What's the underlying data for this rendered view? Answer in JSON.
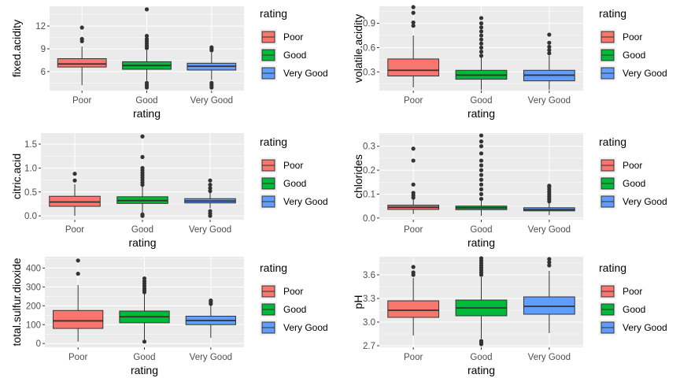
{
  "chart_data": [
    {
      "type": "box",
      "ylabel": "fixed.acidity",
      "xlabel": "rating",
      "categories": [
        "Poor",
        "Good",
        "Very Good"
      ],
      "ylim": [
        3.5,
        14.6
      ],
      "yticks": [
        6,
        9,
        12
      ],
      "legend": {
        "title": "rating",
        "entries": [
          "Poor",
          "Good",
          "Very Good"
        ],
        "position": "right"
      },
      "boxes": [
        {
          "category": "Poor",
          "q1": 6.6,
          "median": 7.0,
          "q3": 7.7,
          "whisker_low": 4.2,
          "whisker_high": 9.3,
          "outliers": [
            10.0,
            10.3,
            11.8
          ]
        },
        {
          "category": "Good",
          "q1": 6.3,
          "median": 6.8,
          "q3": 7.3,
          "whisker_low": 4.8,
          "whisker_high": 8.8,
          "outliers": [
            3.9,
            4.2,
            4.5,
            9.1,
            9.4,
            9.7,
            10.0,
            10.3,
            10.7,
            14.2
          ]
        },
        {
          "category": "Very Good",
          "q1": 6.2,
          "median": 6.7,
          "q3": 7.1,
          "whisker_low": 4.9,
          "whisker_high": 8.5,
          "outliers": [
            3.9,
            4.2,
            4.5,
            8.8,
            9.0,
            9.2
          ]
        }
      ]
    },
    {
      "type": "box",
      "ylabel": "volatile.acidity",
      "xlabel": "rating",
      "categories": [
        "Poor",
        "Good",
        "Very Good"
      ],
      "ylim": [
        0.07,
        1.11
      ],
      "yticks": [
        0.3,
        0.6,
        0.9
      ],
      "legend": {
        "title": "rating",
        "entries": [
          "Poor",
          "Good",
          "Very Good"
        ],
        "position": "right"
      },
      "boxes": [
        {
          "category": "Poor",
          "q1": 0.25,
          "median": 0.32,
          "q3": 0.46,
          "whisker_low": 0.11,
          "whisker_high": 0.75,
          "outliers": [
            0.87,
            0.91,
            1.03,
            1.1
          ]
        },
        {
          "category": "Good",
          "q1": 0.21,
          "median": 0.26,
          "q3": 0.32,
          "whisker_low": 0.08,
          "whisker_high": 0.48,
          "outliers": [
            0.5,
            0.55,
            0.6,
            0.65,
            0.7,
            0.75,
            0.8,
            0.85,
            0.9,
            0.965
          ]
        },
        {
          "category": "Very Good",
          "q1": 0.19,
          "median": 0.26,
          "q3": 0.32,
          "whisker_low": 0.08,
          "whisker_high": 0.5,
          "outliers": [
            0.53,
            0.57,
            0.61,
            0.66,
            0.76
          ]
        }
      ]
    },
    {
      "type": "box",
      "ylabel": "citric.acid",
      "xlabel": "rating",
      "categories": [
        "Poor",
        "Good",
        "Very Good"
      ],
      "ylim": [
        -0.08,
        1.73
      ],
      "yticks": [
        0.0,
        0.5,
        1.0,
        1.5
      ],
      "legend": {
        "title": "rating",
        "entries": [
          "Poor",
          "Good",
          "Very Good"
        ],
        "position": "right"
      },
      "boxes": [
        {
          "category": "Poor",
          "q1": 0.2,
          "median": 0.29,
          "q3": 0.41,
          "whisker_low": 0.0,
          "whisker_high": 0.66,
          "outliers": [
            0.74,
            0.88
          ]
        },
        {
          "category": "Good",
          "q1": 0.26,
          "median": 0.32,
          "q3": 0.4,
          "whisker_low": 0.06,
          "whisker_high": 0.62,
          "outliers": [
            0.0,
            0.03,
            0.65,
            0.7,
            0.75,
            0.8,
            0.85,
            0.9,
            0.95,
            1.0,
            1.23,
            1.66
          ]
        },
        {
          "category": "Very Good",
          "q1": 0.27,
          "median": 0.31,
          "q3": 0.36,
          "whisker_low": 0.16,
          "whisker_high": 0.48,
          "outliers": [
            0.0,
            0.05,
            0.1,
            0.52,
            0.58,
            0.65,
            0.74
          ]
        }
      ]
    },
    {
      "type": "box",
      "ylabel": "chlorides",
      "xlabel": "rating",
      "categories": [
        "Poor",
        "Good",
        "Very Good"
      ],
      "ylim": [
        -0.007,
        0.355
      ],
      "yticks": [
        0.0,
        0.1,
        0.2,
        0.3
      ],
      "legend": {
        "title": "rating",
        "entries": [
          "Poor",
          "Good",
          "Very Good"
        ],
        "position": "right"
      },
      "boxes": [
        {
          "category": "Poor",
          "q1": 0.036,
          "median": 0.045,
          "q3": 0.054,
          "whisker_low": 0.017,
          "whisker_high": 0.08,
          "outliers": [
            0.085,
            0.095,
            0.105,
            0.14,
            0.24,
            0.29
          ]
        },
        {
          "category": "Good",
          "q1": 0.035,
          "median": 0.043,
          "q3": 0.05,
          "whisker_low": 0.009,
          "whisker_high": 0.072,
          "outliers": [
            0.08,
            0.1,
            0.12,
            0.14,
            0.16,
            0.18,
            0.2,
            0.22,
            0.24,
            0.27,
            0.3,
            0.32,
            0.345
          ]
        },
        {
          "category": "Very Good",
          "q1": 0.03,
          "median": 0.035,
          "q3": 0.043,
          "whisker_low": 0.012,
          "whisker_high": 0.063,
          "outliers": [
            0.07,
            0.08,
            0.09,
            0.1,
            0.11,
            0.12,
            0.13,
            0.135
          ]
        }
      ]
    },
    {
      "type": "box",
      "ylabel": "total.sulfur.dioxide",
      "xlabel": "rating",
      "categories": [
        "Poor",
        "Good",
        "Very Good"
      ],
      "ylim": [
        -20,
        460
      ],
      "yticks": [
        0,
        100,
        200,
        300,
        400
      ],
      "legend": {
        "title": "rating",
        "entries": [
          "Poor",
          "Good",
          "Very Good"
        ],
        "position": "right"
      },
      "boxes": [
        {
          "category": "Poor",
          "q1": 80,
          "median": 120,
          "q3": 175,
          "whisker_low": 10,
          "whisker_high": 310,
          "outliers": [
            370,
            440
          ]
        },
        {
          "category": "Good",
          "q1": 110,
          "median": 142,
          "q3": 172,
          "whisker_low": 20,
          "whisker_high": 265,
          "outliers": [
            10,
            272,
            282,
            292,
            305,
            318,
            330,
            345
          ]
        },
        {
          "category": "Very Good",
          "q1": 100,
          "median": 122,
          "q3": 145,
          "whisker_low": 30,
          "whisker_high": 205,
          "outliers": [
            210,
            220,
            228
          ]
        }
      ]
    },
    {
      "type": "box",
      "ylabel": "pH",
      "xlabel": "rating",
      "categories": [
        "Poor",
        "Good",
        "Very Good"
      ],
      "ylim": [
        2.68,
        3.83
      ],
      "yticks": [
        2.7,
        3.0,
        3.3,
        3.6
      ],
      "legend": {
        "title": "rating",
        "entries": [
          "Poor",
          "Good",
          "Very Good"
        ],
        "position": "right"
      },
      "boxes": [
        {
          "category": "Poor",
          "q1": 3.06,
          "median": 3.15,
          "q3": 3.27,
          "whisker_low": 2.83,
          "whisker_high": 3.56,
          "outliers": [
            3.6,
            3.63,
            3.7
          ]
        },
        {
          "category": "Good",
          "q1": 3.08,
          "median": 3.18,
          "q3": 3.28,
          "whisker_low": 2.79,
          "whisker_high": 3.57,
          "outliers": [
            2.72,
            2.74,
            2.76,
            3.6,
            3.63,
            3.66,
            3.69,
            3.72,
            3.75,
            3.78,
            3.81
          ]
        },
        {
          "category": "Very Good",
          "q1": 3.1,
          "median": 3.2,
          "q3": 3.32,
          "whisker_low": 2.86,
          "whisker_high": 3.65,
          "outliers": [
            3.72,
            3.76,
            3.8
          ]
        }
      ]
    }
  ],
  "colors": {
    "panel_bg": "#ebebeb",
    "grid": "#ffffff",
    "box_outline": "#333333",
    "tick_text": "#4d4d4d",
    "fills": {
      "Poor": "#f8766d",
      "Good": "#00ba38",
      "Very Good": "#619cff"
    }
  }
}
